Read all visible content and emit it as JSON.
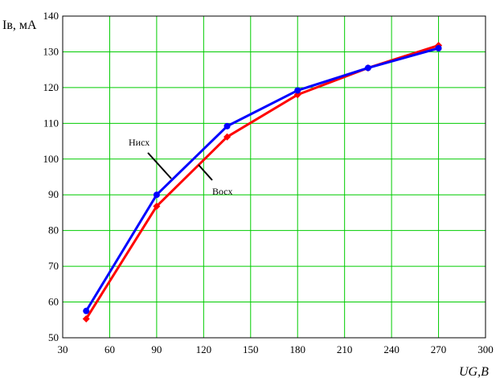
{
  "chart_data": {
    "type": "line",
    "xlabel": "UG,B",
    "ylabel": "Iв, мА",
    "xlim": [
      30,
      300
    ],
    "ylim": [
      50,
      140
    ],
    "xticks": [
      30,
      60,
      90,
      120,
      150,
      180,
      210,
      240,
      270,
      300
    ],
    "yticks": [
      50,
      60,
      70,
      80,
      90,
      100,
      110,
      120,
      130,
      140
    ],
    "grid": true,
    "grid_color": "#00cc00",
    "series": [
      {
        "name": "Нисх",
        "color": "#0000ff",
        "marker": "circle",
        "x": [
          45,
          90,
          135,
          180,
          225,
          270
        ],
        "y": [
          57.5,
          90,
          109.2,
          119.2,
          125.5,
          131
        ]
      },
      {
        "name": "Восх",
        "color": "#ff0000",
        "marker": "diamond",
        "x": [
          45,
          90,
          135,
          180,
          225,
          270
        ],
        "y": [
          55.3,
          86.8,
          106.2,
          118,
          125.5,
          131.8
        ]
      }
    ]
  }
}
